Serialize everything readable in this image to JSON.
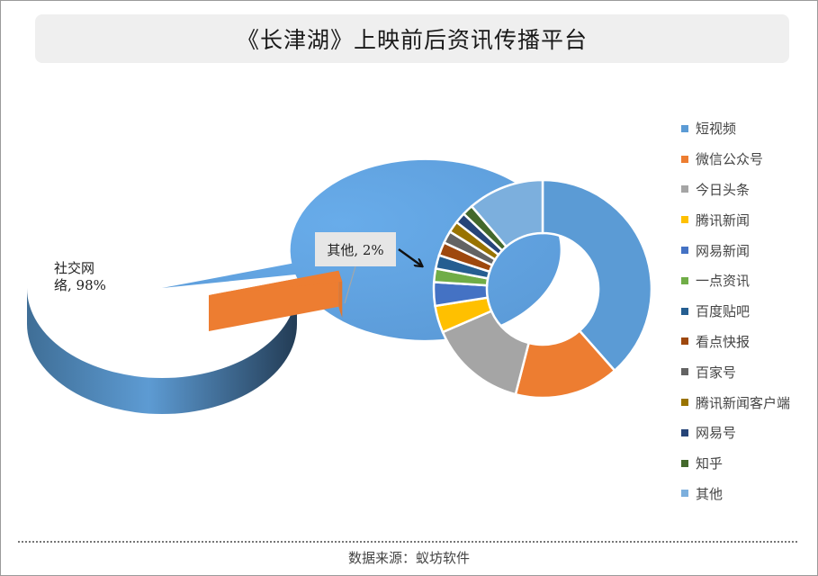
{
  "title": "《长津湖》上映前后资讯传播平台",
  "source": "数据来源：蚁坊软件",
  "chart_data": [
    {
      "type": "pie",
      "categories": [
        "社交网络",
        "其他"
      ],
      "values": [
        98,
        2
      ],
      "colors": [
        "#5b9bd5",
        "#ed7d31"
      ],
      "labels": [
        {
          "lines": [
            "社交网",
            "络, 98%"
          ]
        },
        {
          "lines": [
            "其他, 2%"
          ]
        }
      ]
    },
    {
      "type": "pie",
      "categories": [
        "短视频",
        "微信公众号",
        "今日头条",
        "腾讯新闻",
        "网易新闻",
        "一点资讯",
        "百度贴吧",
        "看点快报",
        "百家号",
        "腾讯新闻客户端",
        "网易号",
        "知乎",
        "其他"
      ],
      "values": [
        38.5,
        15.5,
        14.5,
        4.0,
        3.5,
        2.0,
        2.0,
        2.0,
        1.8,
        1.7,
        1.6,
        1.6,
        11.3
      ],
      "colors": [
        "#5b9bd5",
        "#ed7d31",
        "#a5a5a5",
        "#ffc000",
        "#4472c4",
        "#70ad47",
        "#255e91",
        "#9e480e",
        "#636363",
        "#997300",
        "#264478",
        "#43682b",
        "#7cafdd"
      ],
      "legend_position": "right"
    }
  ]
}
